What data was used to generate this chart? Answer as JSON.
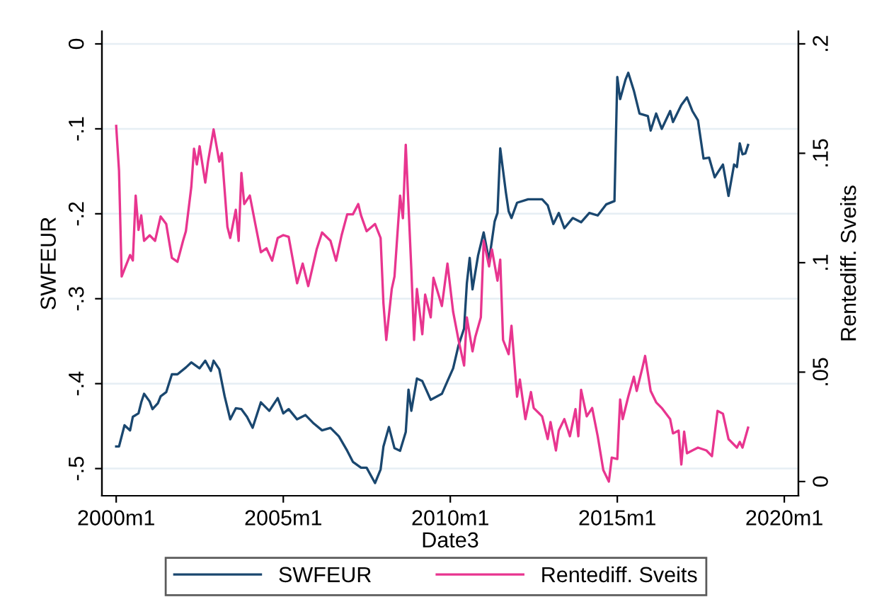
{
  "chart_data": {
    "type": "line",
    "xlabel": "Date3",
    "ylabel": "SWFEUR",
    "y2label": "Rentediff. Sveits",
    "xlim": [
      "1999-07-29",
      "2020-06-03"
    ],
    "xticks": [
      {
        "value": "2000-01",
        "label": "2000m1"
      },
      {
        "value": "2005-01",
        "label": "2005m1"
      },
      {
        "value": "2010-01",
        "label": "2010m1"
      },
      {
        "value": "2015-01",
        "label": "2015m1"
      },
      {
        "value": "2020-01",
        "label": "2020m1"
      }
    ],
    "ylim": [
      -0.532,
      0.015
    ],
    "yticks": [
      {
        "value": -0.5,
        "label": "-.5"
      },
      {
        "value": -0.4,
        "label": "-.4"
      },
      {
        "value": -0.3,
        "label": "-.3"
      },
      {
        "value": -0.2,
        "label": "-.2"
      },
      {
        "value": -0.1,
        "label": "-.1"
      },
      0
    ],
    "y2lim": [
      -0.0065,
      0.2058
    ],
    "y2ticks": [
      0,
      {
        "value": 0.05,
        "label": ".05"
      },
      {
        "value": 0.1,
        "label": ".1"
      },
      {
        "value": 0.15,
        "label": ".15"
      },
      {
        "value": 0.2,
        "label": ".2"
      }
    ],
    "grid": "y",
    "legend": "bottom",
    "line_style": "solid",
    "series": [
      {
        "name": "SWFEUR",
        "color": "#1a476f",
        "x": [
          "2000-01",
          "2000-02",
          "2000-04",
          "2000-06",
          "2000-07",
          "2000-09",
          "2000-10",
          "2000-11",
          "2001-01",
          "2001-02",
          "2001-04",
          "2001-05",
          "2001-07",
          "2001-09",
          "2001-11",
          "2002-02",
          "2002-04",
          "2002-07",
          "2002-09",
          "2002-11",
          "2002-12",
          "2003-02",
          "2003-04",
          "2003-06",
          "2003-08",
          "2003-10",
          "2003-12",
          "2004-02",
          "2004-05",
          "2004-08",
          "2004-11",
          "2005-01",
          "2005-03",
          "2005-06",
          "2005-09",
          "2005-12",
          "2006-03",
          "2006-06",
          "2006-09",
          "2006-12",
          "2007-02",
          "2007-05",
          "2007-07",
          "2007-10",
          "2007-12",
          "2008-01",
          "2008-03",
          "2008-05",
          "2008-07",
          "2008-09",
          "2008-10",
          "2008-11",
          "2009-01",
          "2009-03",
          "2009-06",
          "2009-10",
          "2009-12",
          "2010-02",
          "2010-04",
          "2010-06",
          "2010-07",
          "2010-08",
          "2010-09",
          "2010-11",
          "2011-01",
          "2011-03",
          "2011-05",
          "2011-06",
          "2011-07",
          "2011-09",
          "2011-10",
          "2011-11",
          "2012-01",
          "2012-05",
          "2012-10",
          "2012-12",
          "2013-02",
          "2013-04",
          "2013-06",
          "2013-09",
          "2013-12",
          "2014-03",
          "2014-06",
          "2014-09",
          "2014-12",
          "2015-01",
          "2015-02",
          "2015-04",
          "2015-05",
          "2015-07",
          "2015-09",
          "2015-12",
          "2016-01",
          "2016-03",
          "2016-05",
          "2016-08",
          "2016-09",
          "2016-12",
          "2017-02",
          "2017-04",
          "2017-06",
          "2017-08",
          "2017-10",
          "2017-12",
          "2018-03",
          "2018-05",
          "2018-07",
          "2018-08",
          "2018-09",
          "2018-10",
          "2018-11",
          "2018-12"
        ],
        "values": [
          -0.474,
          -0.474,
          -0.449,
          -0.455,
          -0.439,
          -0.435,
          -0.422,
          -0.412,
          -0.421,
          -0.43,
          -0.423,
          -0.415,
          -0.41,
          -0.389,
          -0.389,
          -0.381,
          -0.375,
          -0.382,
          -0.373,
          -0.385,
          -0.373,
          -0.383,
          -0.415,
          -0.442,
          -0.429,
          -0.43,
          -0.439,
          -0.452,
          -0.422,
          -0.432,
          -0.417,
          -0.435,
          -0.43,
          -0.442,
          -0.437,
          -0.447,
          -0.455,
          -0.452,
          -0.462,
          -0.479,
          -0.492,
          -0.499,
          -0.499,
          -0.517,
          -0.501,
          -0.474,
          -0.451,
          -0.476,
          -0.479,
          -0.457,
          -0.407,
          -0.432,
          -0.394,
          -0.397,
          -0.419,
          -0.412,
          -0.397,
          -0.382,
          -0.355,
          -0.335,
          -0.282,
          -0.252,
          -0.289,
          -0.249,
          -0.222,
          -0.255,
          -0.209,
          -0.199,
          -0.123,
          -0.175,
          -0.197,
          -0.205,
          -0.187,
          -0.183,
          -0.183,
          -0.19,
          -0.212,
          -0.199,
          -0.217,
          -0.205,
          -0.21,
          -0.199,
          -0.202,
          -0.189,
          -0.185,
          -0.039,
          -0.065,
          -0.042,
          -0.034,
          -0.055,
          -0.082,
          -0.085,
          -0.102,
          -0.082,
          -0.1,
          -0.079,
          -0.092,
          -0.072,
          -0.063,
          -0.079,
          -0.09,
          -0.135,
          -0.134,
          -0.157,
          -0.142,
          -0.179,
          -0.142,
          -0.145,
          -0.117,
          -0.13,
          -0.129,
          -0.119
        ]
      },
      {
        "name": "Rentediff. Sveits",
        "color": "#e8358f",
        "axis": "y2",
        "x": [
          "2000-01",
          "2000-02",
          "2000-03",
          "2000-04",
          "2000-06",
          "2000-07",
          "2000-08",
          "2000-09",
          "2000-10",
          "2000-11",
          "2001-01",
          "2001-03",
          "2001-05",
          "2001-07",
          "2001-09",
          "2001-11",
          "2002-01",
          "2002-02",
          "2002-04",
          "2002-05",
          "2002-06",
          "2002-07",
          "2002-09",
          "2002-10",
          "2002-12",
          "2003-02",
          "2003-03",
          "2003-05",
          "2003-06",
          "2003-08",
          "2003-09",
          "2003-10",
          "2003-11",
          "2004-01",
          "2004-03",
          "2004-05",
          "2004-07",
          "2004-09",
          "2004-11",
          "2005-01",
          "2005-03",
          "2005-06",
          "2005-08",
          "2005-10",
          "2006-01",
          "2006-03",
          "2006-06",
          "2006-08",
          "2006-10",
          "2006-12",
          "2007-02",
          "2007-04",
          "2007-05",
          "2007-07",
          "2007-10",
          "2007-12",
          "2008-01",
          "2008-02",
          "2008-04",
          "2008-05",
          "2008-07",
          "2008-08",
          "2008-09",
          "2008-11",
          "2008-12",
          "2009-01",
          "2009-03",
          "2009-04",
          "2009-06",
          "2009-07",
          "2009-10",
          "2009-12",
          "2010-02",
          "2010-04",
          "2010-06",
          "2010-07",
          "2010-09",
          "2010-10",
          "2010-12",
          "2011-01",
          "2011-03",
          "2011-04",
          "2011-06",
          "2011-07",
          "2011-08",
          "2011-10",
          "2011-11",
          "2012-01",
          "2012-02",
          "2012-04",
          "2012-06",
          "2012-07",
          "2012-10",
          "2012-12",
          "2013-01",
          "2013-03",
          "2013-04",
          "2013-06",
          "2013-08",
          "2013-10",
          "2013-11",
          "2013-12",
          "2014-02",
          "2014-04",
          "2014-06",
          "2014-08",
          "2014-10",
          "2014-11",
          "2015-01",
          "2015-02",
          "2015-03",
          "2015-05",
          "2015-07",
          "2015-08",
          "2015-10",
          "2015-11",
          "2016-01",
          "2016-03",
          "2016-05",
          "2016-08",
          "2016-09",
          "2016-11",
          "2016-12",
          "2017-01",
          "2017-02",
          "2017-04",
          "2017-06",
          "2017-09",
          "2017-11",
          "2018-01",
          "2018-03",
          "2018-05",
          "2018-08",
          "2018-09",
          "2018-10",
          "2018-12"
        ],
        "values": [
          0.1625,
          0.142,
          0.0937,
          0.097,
          0.1035,
          0.101,
          0.1307,
          0.115,
          0.1216,
          0.11,
          0.1125,
          0.11,
          0.1211,
          0.1177,
          0.1022,
          0.1004,
          0.11,
          0.1144,
          0.1345,
          0.1521,
          0.1449,
          0.1532,
          0.1366,
          0.1462,
          0.1609,
          0.1462,
          0.1501,
          0.1164,
          0.1113,
          0.1242,
          0.11,
          0.141,
          0.1268,
          0.1307,
          0.1177,
          0.1048,
          0.1066,
          0.1009,
          0.1113,
          0.1126,
          0.1118,
          0.0906,
          0.0996,
          0.0893,
          0.1061,
          0.1138,
          0.11,
          0.1009,
          0.1126,
          0.1221,
          0.1221,
          0.1268,
          0.1216,
          0.1144,
          0.1177,
          0.1113,
          0.0815,
          0.0647,
          0.088,
          0.0937,
          0.1307,
          0.1203,
          0.1539,
          0.097,
          0.0647,
          0.088,
          0.0673,
          0.0854,
          0.075,
          0.0931,
          0.0802,
          0.0996,
          0.0776,
          0.0647,
          0.053,
          0.075,
          0.0595,
          0.066,
          0.075,
          0.11,
          0.0983,
          0.1061,
          0.0918,
          0.1014,
          0.0647,
          0.0582,
          0.0712,
          0.0388,
          0.0466,
          0.0285,
          0.0409,
          0.0336,
          0.0298,
          0.0194,
          0.0272,
          0.0142,
          0.0233,
          0.0285,
          0.0207,
          0.0331,
          0.0207,
          0.0419,
          0.0298,
          0.0336,
          0.0207,
          0.0052,
          0.0,
          0.0109,
          0.0103,
          0.0375,
          0.0285,
          0.0388,
          0.0479,
          0.0414,
          0.0517,
          0.0574,
          0.0414,
          0.0362,
          0.0336,
          0.0285,
          0.022,
          0.0233,
          0.0078,
          0.0228,
          0.0129,
          0.0142,
          0.0155,
          0.0142,
          0.0116,
          0.0323,
          0.031,
          0.0194,
          0.0155,
          0.0181,
          0.0155,
          0.0246
        ]
      }
    ]
  }
}
